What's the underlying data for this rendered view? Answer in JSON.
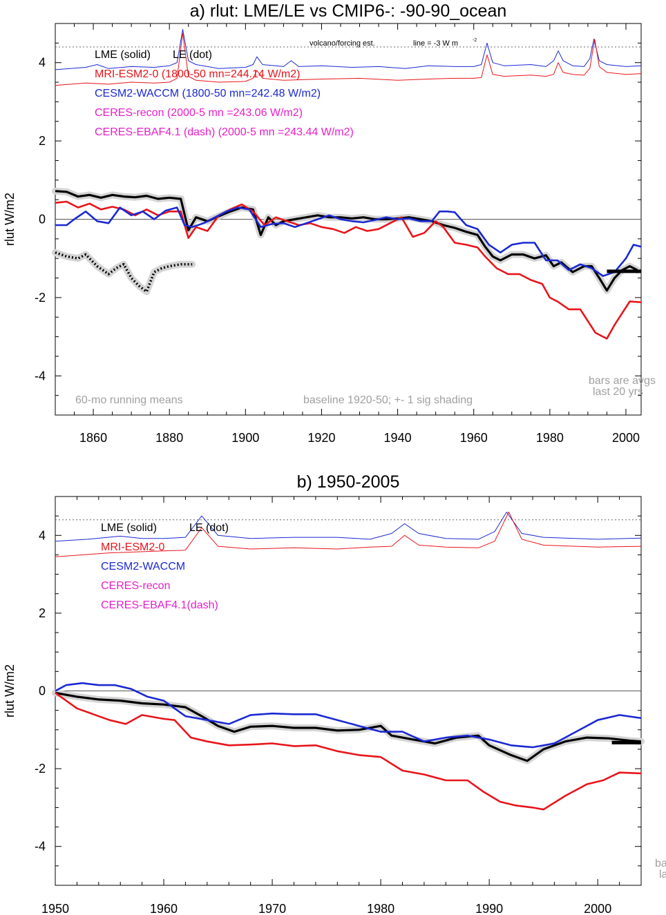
{
  "chart_data": [
    {
      "type": "line",
      "title": "a) rlut: LME/LE vs CMIP6-: -90-90_ocean",
      "ylabel": "rlut W/m2",
      "xlabel": "",
      "xlim": [
        1850,
        2004
      ],
      "ylim": [
        -5,
        5
      ],
      "xticks": [
        1860,
        1880,
        1900,
        1920,
        1940,
        1960,
        1980,
        2000
      ],
      "yticks": [
        4,
        2,
        0,
        -2,
        -4
      ],
      "grid": false,
      "legend_placement": "top-left",
      "legend": [
        {
          "label": "LME (solid)",
          "color": "#000000"
        },
        {
          "label": "LE (dot)",
          "color": "#000000"
        },
        {
          "label": "MRI-ESM2-0 (1800-50 mn=244.14 W/m2)",
          "color": "#e8141a"
        },
        {
          "label": "CESM2-WACCM (1800-50 mn=242.48 W/m2)",
          "color": "#1a28d2"
        },
        {
          "label": "CERES-recon (2000-5 mn =243.06 W/m2)",
          "color": "#e81ec8"
        },
        {
          "label": "CERES-EBAF4.1 (dash) (2000-5 mn =243.44 W/m2)",
          "color": "#e81ec8"
        }
      ],
      "annotations": {
        "volcano_label": "volcano/forcing est.",
        "volcano_line": "line = -3 W m",
        "volcano_unit_sup": "-2",
        "running_mean": "60-mo running means",
        "baseline": "baseline 1920-50; +- 1 sig shading",
        "bars_line1": "bars are avgs",
        "bars_line2": "last 20 yrs"
      },
      "reference_line_y": 4.4,
      "bar_avg": {
        "x": [
          1995,
          2004
        ],
        "y": -1.33
      },
      "series": [
        {
          "name": "LME (solid)",
          "color": "#000000",
          "x": [
            1850,
            1853,
            1856,
            1859,
            1862,
            1865,
            1868,
            1871,
            1874,
            1877,
            1880,
            1883,
            1885,
            1887,
            1890,
            1893,
            1896,
            1899,
            1902,
            1904,
            1906,
            1908,
            1910,
            1913,
            1916,
            1919,
            1922,
            1925,
            1928,
            1931,
            1934,
            1937,
            1940,
            1943,
            1946,
            1949,
            1952,
            1955,
            1958,
            1961,
            1963,
            1965,
            1967,
            1970,
            1973,
            1976,
            1979,
            1981,
            1983,
            1986,
            1989,
            1991,
            1993,
            1995,
            1997,
            1999,
            2001,
            2003
          ],
          "y": [
            0.72,
            0.7,
            0.58,
            0.62,
            0.55,
            0.62,
            0.58,
            0.56,
            0.6,
            0.52,
            0.55,
            0.52,
            -0.28,
            0.05,
            -0.05,
            0.08,
            0.2,
            0.3,
            0.25,
            -0.4,
            0.05,
            -0.15,
            -0.05,
            0.0,
            0.05,
            0.1,
            0.05,
            0.05,
            0.02,
            0.05,
            0.0,
            0.0,
            0.02,
            0.05,
            0.0,
            -0.05,
            -0.15,
            -0.22,
            -0.32,
            -0.4,
            -0.7,
            -0.95,
            -1.05,
            -0.9,
            -0.9,
            -1.0,
            -0.92,
            -1.2,
            -1.1,
            -1.35,
            -1.2,
            -1.2,
            -1.5,
            -1.82,
            -1.5,
            -1.3,
            -1.2,
            -1.3
          ]
        },
        {
          "name": "LE (dot)",
          "color": "#000000",
          "x": [
            1850,
            1853,
            1856,
            1858,
            1861,
            1864,
            1866,
            1868,
            1870,
            1872,
            1874,
            1876,
            1878,
            1880,
            1883,
            1886
          ],
          "y": [
            -0.85,
            -0.95,
            -1.0,
            -0.9,
            -1.2,
            -1.4,
            -1.25,
            -1.15,
            -1.5,
            -1.7,
            -1.85,
            -1.35,
            -1.25,
            -1.2,
            -1.15,
            -1.15
          ]
        },
        {
          "name": "MRI-ESM2-0",
          "color": "#e8141a",
          "x": [
            1850,
            1853,
            1856,
            1859,
            1862,
            1865,
            1868,
            1871,
            1874,
            1877,
            1880,
            1883,
            1885,
            1887,
            1890,
            1893,
            1896,
            1899,
            1902,
            1905,
            1908,
            1911,
            1914,
            1917,
            1920,
            1923,
            1926,
            1929,
            1932,
            1935,
            1938,
            1941,
            1944,
            1947,
            1950,
            1952,
            1955,
            1958,
            1961,
            1963,
            1966,
            1969,
            1972,
            1975,
            1978,
            1980,
            1982,
            1985,
            1988,
            1990,
            1992,
            1994,
            1995,
            1997,
            1999,
            2001,
            2004
          ],
          "y": [
            0.42,
            0.45,
            0.3,
            0.4,
            0.25,
            0.32,
            0.25,
            0.1,
            0.25,
            0.1,
            0.2,
            0.2,
            -0.48,
            -0.2,
            -0.3,
            0.1,
            0.25,
            0.38,
            0.2,
            -0.15,
            0.05,
            -0.05,
            -0.15,
            -0.1,
            -0.2,
            -0.25,
            -0.35,
            -0.2,
            -0.3,
            -0.25,
            -0.1,
            0.05,
            -0.45,
            -0.35,
            -0.05,
            -0.2,
            -0.6,
            -0.65,
            -0.72,
            -0.95,
            -1.25,
            -1.4,
            -1.4,
            -1.55,
            -1.65,
            -2.0,
            -2.1,
            -2.3,
            -2.3,
            -2.6,
            -2.9,
            -3.0,
            -3.05,
            -2.7,
            -2.4,
            -2.1,
            -2.12
          ]
        },
        {
          "name": "CESM2-WACCM",
          "color": "#1a28d2",
          "x": [
            1850,
            1853,
            1855,
            1858,
            1861,
            1864,
            1867,
            1870,
            1873,
            1876,
            1879,
            1882,
            1884,
            1886,
            1889,
            1892,
            1895,
            1898,
            1901,
            1904,
            1907,
            1910,
            1913,
            1916,
            1919,
            1922,
            1925,
            1928,
            1931,
            1934,
            1937,
            1940,
            1943,
            1946,
            1949,
            1951,
            1953,
            1955,
            1958,
            1961,
            1964,
            1967,
            1970,
            1973,
            1976,
            1979,
            1982,
            1985,
            1988,
            1991,
            1994,
            1997,
            2000,
            2002,
            2004
          ],
          "y": [
            -0.15,
            -0.15,
            0.0,
            0.2,
            -0.05,
            -0.1,
            0.3,
            0.1,
            0.2,
            0.0,
            0.22,
            0.3,
            -0.15,
            -0.2,
            -0.1,
            0.05,
            0.2,
            0.3,
            0.25,
            -0.2,
            -0.12,
            -0.1,
            -0.2,
            -0.1,
            0.0,
            0.1,
            0.0,
            -0.05,
            -0.08,
            -0.02,
            0.05,
            0.0,
            0.02,
            -0.05,
            -0.05,
            0.2,
            0.2,
            0.18,
            -0.15,
            -0.25,
            -0.65,
            -0.85,
            -0.65,
            -0.6,
            -0.6,
            -1.05,
            -1.05,
            -1.3,
            -1.15,
            -1.25,
            -1.45,
            -1.35,
            -1.0,
            -0.65,
            -0.7
          ]
        },
        {
          "name": "CESM2-WACCM forcing",
          "color": "#1a28d2",
          "thin": true,
          "x": [
            1850,
            1858,
            1861,
            1864,
            1870,
            1876,
            1880,
            1882,
            1883.5,
            1885,
            1887,
            1893,
            1900,
            1902,
            1903,
            1904.5,
            1910,
            1912,
            1914,
            1920,
            1928,
            1935,
            1942,
            1948,
            1955,
            1960,
            1962,
            1963.5,
            1965,
            1968,
            1975,
            1979,
            1981,
            1982.2,
            1983.5,
            1986,
            1989,
            1990.5,
            1991.6,
            1993,
            1995,
            2000,
            2004
          ],
          "y": [
            3.82,
            3.88,
            3.95,
            3.85,
            3.9,
            3.88,
            3.92,
            4.0,
            4.85,
            4.05,
            3.95,
            3.85,
            3.88,
            3.95,
            4.15,
            3.95,
            3.9,
            4.05,
            3.9,
            3.92,
            3.88,
            3.9,
            3.85,
            3.92,
            3.9,
            3.9,
            3.95,
            4.5,
            4.0,
            3.92,
            3.95,
            3.9,
            4.05,
            4.3,
            4.05,
            3.92,
            3.9,
            4.1,
            4.6,
            4.05,
            3.95,
            3.9,
            3.92
          ]
        },
        {
          "name": "MRI-ESM2-0 forcing",
          "color": "#e8141a",
          "thin": true,
          "x": [
            1850,
            1858,
            1864,
            1870,
            1876,
            1880,
            1882,
            1883.5,
            1885,
            1887,
            1893,
            1900,
            1902,
            1903,
            1904.5,
            1910,
            1920,
            1930,
            1940,
            1948,
            1955,
            1960,
            1962,
            1963.5,
            1965,
            1968,
            1975,
            1979,
            1981,
            1982.2,
            1983.5,
            1986,
            1989,
            1990.5,
            1991.8,
            1993,
            1995,
            2000,
            2004
          ],
          "y": [
            3.42,
            3.48,
            3.45,
            3.5,
            3.48,
            3.5,
            3.6,
            4.75,
            3.65,
            3.55,
            3.5,
            3.52,
            3.6,
            3.8,
            3.6,
            3.55,
            3.58,
            3.6,
            3.55,
            3.58,
            3.6,
            3.6,
            3.62,
            4.2,
            3.7,
            3.65,
            3.68,
            3.65,
            3.7,
            4.0,
            3.75,
            3.7,
            3.68,
            3.85,
            4.6,
            3.9,
            3.75,
            3.7,
            3.72
          ]
        }
      ]
    },
    {
      "type": "line",
      "title": "b) 1950-2005",
      "ylabel": "rlut W/m2",
      "xlabel": "",
      "xlim": [
        1950,
        2004
      ],
      "ylim": [
        -5,
        5
      ],
      "xticks": [
        1950,
        1960,
        1970,
        1980,
        1990,
        2000
      ],
      "yticks": [
        4,
        2,
        0,
        -2,
        -4
      ],
      "grid": false,
      "legend_placement": "top-left",
      "legend": [
        {
          "label": "LME (solid)",
          "color": "#000000"
        },
        {
          "label": "LE (dot)",
          "color": "#000000"
        },
        {
          "label": "MRI-ESM2-0",
          "color": "#e8141a"
        },
        {
          "label": "CESM2-WACCM",
          "color": "#1a28d2"
        },
        {
          "label": "CERES-recon",
          "color": "#e81ec8"
        },
        {
          "label": "CERES-EBAF4.1(dash)",
          "color": "#e81ec8"
        }
      ],
      "annotations": {
        "bars_line1": "ba",
        "bars_line2": "la"
      },
      "reference_line_y": 4.4,
      "bar_avg": {
        "x": [
          2001.3,
          2004
        ],
        "y": -1.33
      },
      "series": [
        {
          "name": "LME (solid)",
          "color": "#000000",
          "x": [
            1950,
            1952,
            1954,
            1956,
            1958,
            1960,
            1962,
            1963.5,
            1965,
            1966.5,
            1968,
            1970,
            1972,
            1974,
            1976,
            1978,
            1980,
            1981,
            1983,
            1985,
            1987,
            1989,
            1990,
            1992,
            1993.5,
            1995,
            1997,
            1999,
            2001,
            2003,
            2004
          ],
          "y": [
            -0.05,
            -0.15,
            -0.22,
            -0.25,
            -0.32,
            -0.35,
            -0.42,
            -0.65,
            -0.9,
            -1.05,
            -0.92,
            -0.9,
            -0.95,
            -0.95,
            -1.02,
            -1.0,
            -0.9,
            -1.15,
            -1.25,
            -1.35,
            -1.2,
            -1.15,
            -1.4,
            -1.65,
            -1.8,
            -1.5,
            -1.3,
            -1.2,
            -1.22,
            -1.28,
            -1.3
          ]
        },
        {
          "name": "MRI-ESM2-0",
          "color": "#e8141a",
          "x": [
            1950,
            1952,
            1953.5,
            1955,
            1956.5,
            1958,
            1960,
            1961,
            1962.5,
            1964,
            1966,
            1968,
            1970,
            1972,
            1974,
            1976,
            1978,
            1980,
            1982,
            1984,
            1986,
            1988,
            1989.5,
            1991,
            1992.5,
            1994,
            1995,
            1997,
            1999,
            2000.5,
            2002,
            2004
          ],
          "y": [
            -0.05,
            -0.45,
            -0.6,
            -0.75,
            -0.85,
            -0.62,
            -0.72,
            -0.75,
            -1.2,
            -1.3,
            -1.4,
            -1.38,
            -1.35,
            -1.42,
            -1.4,
            -1.55,
            -1.65,
            -1.7,
            -2.05,
            -2.15,
            -2.3,
            -2.3,
            -2.6,
            -2.85,
            -2.95,
            -3.0,
            -3.05,
            -2.7,
            -2.4,
            -2.3,
            -2.1,
            -2.12
          ]
        },
        {
          "name": "CESM2-WACCM",
          "color": "#1a28d2",
          "x": [
            1950,
            1951,
            1952.5,
            1954,
            1955.5,
            1957,
            1958.5,
            1960,
            1962,
            1964,
            1966,
            1968,
            1970,
            1972,
            1974,
            1976,
            1978,
            1980,
            1982,
            1984,
            1986,
            1988,
            1990,
            1992,
            1994,
            1996,
            1998,
            2000,
            2002,
            2004
          ],
          "y": [
            0.0,
            0.15,
            0.2,
            0.15,
            0.15,
            0.05,
            -0.15,
            -0.25,
            -0.65,
            -0.75,
            -0.85,
            -0.62,
            -0.58,
            -0.6,
            -0.6,
            -0.75,
            -0.9,
            -1.05,
            -1.05,
            -1.3,
            -1.2,
            -1.15,
            -1.25,
            -1.4,
            -1.45,
            -1.35,
            -1.05,
            -0.75,
            -0.62,
            -0.7
          ]
        },
        {
          "name": "CESM2-WACCM forcing",
          "color": "#1a28d2",
          "thin": true,
          "x": [
            1950,
            1953,
            1956,
            1958,
            1960,
            1962,
            1963.5,
            1965,
            1968,
            1972,
            1976,
            1979,
            1981,
            1982.2,
            1983.5,
            1986,
            1989,
            1990.5,
            1991.6,
            1993,
            1995,
            2000,
            2004
          ],
          "y": [
            3.85,
            3.9,
            3.98,
            3.92,
            3.92,
            3.95,
            4.5,
            4.0,
            3.92,
            3.95,
            3.95,
            3.9,
            4.05,
            4.3,
            4.05,
            3.92,
            3.9,
            4.1,
            4.6,
            4.05,
            3.95,
            3.9,
            3.93
          ]
        },
        {
          "name": "MRI-ESM2-0 forcing",
          "color": "#e8141a",
          "thin": true,
          "x": [
            1950,
            1955,
            1960,
            1962,
            1963.5,
            1965,
            1968,
            1972,
            1976,
            1979,
            1981,
            1982.2,
            1983.5,
            1986,
            1989,
            1990.5,
            1991.8,
            1993,
            1995,
            2000,
            2004
          ],
          "y": [
            3.45,
            3.55,
            3.6,
            3.62,
            4.2,
            3.72,
            3.65,
            3.68,
            3.65,
            3.7,
            3.72,
            4.0,
            3.75,
            3.7,
            3.68,
            3.85,
            4.6,
            3.9,
            3.75,
            3.7,
            3.72
          ]
        }
      ]
    }
  ]
}
